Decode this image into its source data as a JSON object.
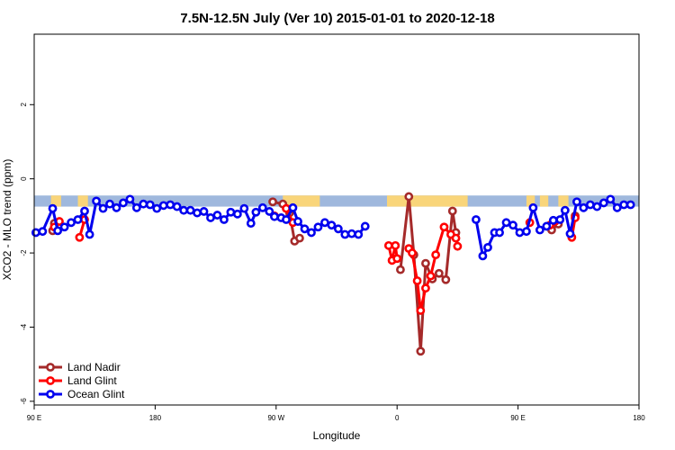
{
  "chart_data": {
    "type": "line",
    "title": "7.5N-12.5N July (Ver 10)   2015-01-01 to 2020-12-18",
    "xlabel": "Longitude",
    "ylabel": "XCO2 - MLO trend (ppm)",
    "xlim": [
      90,
      450
    ],
    "ylim": [
      -6.1,
      3.9
    ],
    "x_ticks": [
      {
        "value": 90,
        "label": "90 E"
      },
      {
        "value": 162,
        "label": "180"
      },
      {
        "value": 234,
        "label": "90 W"
      },
      {
        "value": 306,
        "label": "0"
      },
      {
        "value": 378,
        "label": "90 E"
      },
      {
        "value": 450,
        "label": "180"
      }
    ],
    "y_ticks": [
      {
        "value": -6,
        "label": "-6"
      },
      {
        "value": -4,
        "label": "-4"
      },
      {
        "value": -2,
        "label": "-2"
      },
      {
        "value": 0,
        "label": "0"
      },
      {
        "value": 2,
        "label": "2"
      }
    ],
    "grid": false,
    "legend_position": "bottom-left",
    "land_band": {
      "y_range": [
        -0.75,
        -0.45
      ],
      "ocean_color": "#9fb8dd",
      "land_color": "#f9d57a",
      "land_segments": [
        [
          100,
          106
        ],
        [
          116,
          122
        ],
        [
          238,
          260
        ],
        [
          300,
          348
        ],
        [
          383,
          388
        ],
        [
          391,
          396
        ],
        [
          402,
          408
        ]
      ]
    },
    "series": [
      {
        "name": "Land Nadir",
        "color": "#a52a2a",
        "segments": [
          [
            [
              101,
              -1.4
            ],
            [
              102,
              -1.2
            ]
          ],
          [
            [
              232,
              -0.62
            ],
            [
              238,
              -0.68
            ],
            [
              242,
              -0.92
            ],
            [
              245,
              -1.68
            ],
            [
              248,
              -1.6
            ]
          ],
          [
            [
              308,
              -2.45
            ],
            [
              313,
              -0.48
            ],
            [
              316,
              -2.05
            ],
            [
              320,
              -4.65
            ],
            [
              323,
              -2.28
            ],
            [
              327,
              -2.7
            ],
            [
              331,
              -2.55
            ],
            [
              335,
              -2.72
            ],
            [
              339,
              -0.87
            ],
            [
              341,
              -1.45
            ]
          ],
          [
            [
              398,
              -1.38
            ],
            [
              402,
              -1.22
            ]
          ],
          [
            [
              412,
              -1.0
            ]
          ]
        ]
      },
      {
        "name": "Land Glint",
        "color": "#ff0000",
        "segments": [
          [
            [
              102,
              -1.3
            ],
            [
              105,
              -1.15
            ]
          ],
          [
            [
              117,
              -1.58
            ],
            [
              120,
              -1.1
            ]
          ],
          [
            [
              233,
              -1.0
            ]
          ],
          [
            [
              240,
              -0.8
            ],
            [
              244,
              -1.18
            ]
          ],
          [
            [
              301,
              -1.8
            ],
            [
              303,
              -2.2
            ],
            [
              305,
              -1.8
            ],
            [
              306,
              -2.15
            ]
          ],
          [
            [
              313,
              -1.88
            ],
            [
              315,
              -2.0
            ],
            [
              318,
              -2.75
            ],
            [
              320,
              -3.55
            ],
            [
              323,
              -2.95
            ],
            [
              326,
              -2.62
            ],
            [
              329,
              -2.05
            ],
            [
              334,
              -1.3
            ],
            [
              338,
              -1.5
            ],
            [
              341,
              -1.6
            ],
            [
              342,
              -1.82
            ]
          ],
          [
            [
              385,
              -1.18
            ]
          ],
          [
            [
              397,
              -1.25
            ],
            [
              400,
              -1.15
            ]
          ],
          [
            [
              410,
              -1.58
            ],
            [
              412,
              -1.05
            ]
          ]
        ]
      },
      {
        "name": "Ocean Glint",
        "color": "#0000ee",
        "segments": [
          [
            [
              91,
              -1.45
            ],
            [
              95,
              -1.42
            ],
            [
              101,
              -0.8
            ],
            [
              104,
              -1.4
            ],
            [
              108,
              -1.3
            ],
            [
              112,
              -1.18
            ],
            [
              116,
              -1.1
            ],
            [
              120,
              -0.87
            ],
            [
              123,
              -1.5
            ],
            [
              127,
              -0.6
            ],
            [
              131,
              -0.8
            ],
            [
              135,
              -0.68
            ],
            [
              139,
              -0.78
            ],
            [
              143,
              -0.65
            ],
            [
              147,
              -0.55
            ],
            [
              151,
              -0.78
            ],
            [
              155,
              -0.68
            ],
            [
              159,
              -0.7
            ],
            [
              163,
              -0.8
            ],
            [
              167,
              -0.72
            ],
            [
              171,
              -0.7
            ],
            [
              175,
              -0.75
            ],
            [
              179,
              -0.85
            ],
            [
              183,
              -0.85
            ],
            [
              187,
              -0.92
            ],
            [
              191,
              -0.88
            ],
            [
              195,
              -1.05
            ],
            [
              199,
              -0.98
            ],
            [
              203,
              -1.1
            ],
            [
              207,
              -0.9
            ],
            [
              211,
              -0.95
            ],
            [
              215,
              -0.8
            ],
            [
              219,
              -1.2
            ],
            [
              222,
              -0.9
            ],
            [
              226,
              -0.78
            ],
            [
              230,
              -0.88
            ],
            [
              233,
              -1.02
            ],
            [
              237,
              -1.05
            ],
            [
              240,
              -1.1
            ],
            [
              244,
              -0.78
            ],
            [
              247,
              -1.15
            ],
            [
              251,
              -1.35
            ],
            [
              255,
              -1.45
            ],
            [
              259,
              -1.3
            ],
            [
              263,
              -1.18
            ],
            [
              267,
              -1.25
            ],
            [
              271,
              -1.35
            ],
            [
              275,
              -1.5
            ],
            [
              279,
              -1.48
            ],
            [
              283,
              -1.5
            ],
            [
              287,
              -1.28
            ]
          ],
          [
            [
              353,
              -1.1
            ],
            [
              357,
              -2.08
            ],
            [
              360,
              -1.85
            ],
            [
              364,
              -1.45
            ],
            [
              367,
              -1.45
            ],
            [
              371,
              -1.18
            ],
            [
              375,
              -1.25
            ],
            [
              379,
              -1.45
            ],
            [
              383,
              -1.42
            ],
            [
              387,
              -0.78
            ],
            [
              391,
              -1.38
            ],
            [
              395,
              -1.28
            ],
            [
              399,
              -1.12
            ],
            [
              403,
              -1.1
            ],
            [
              406,
              -0.85
            ],
            [
              409,
              -1.48
            ],
            [
              413,
              -0.62
            ],
            [
              417,
              -0.78
            ],
            [
              421,
              -0.7
            ],
            [
              425,
              -0.75
            ],
            [
              429,
              -0.65
            ],
            [
              433,
              -0.55
            ],
            [
              437,
              -0.78
            ],
            [
              441,
              -0.7
            ],
            [
              445,
              -0.7
            ]
          ]
        ]
      }
    ]
  }
}
